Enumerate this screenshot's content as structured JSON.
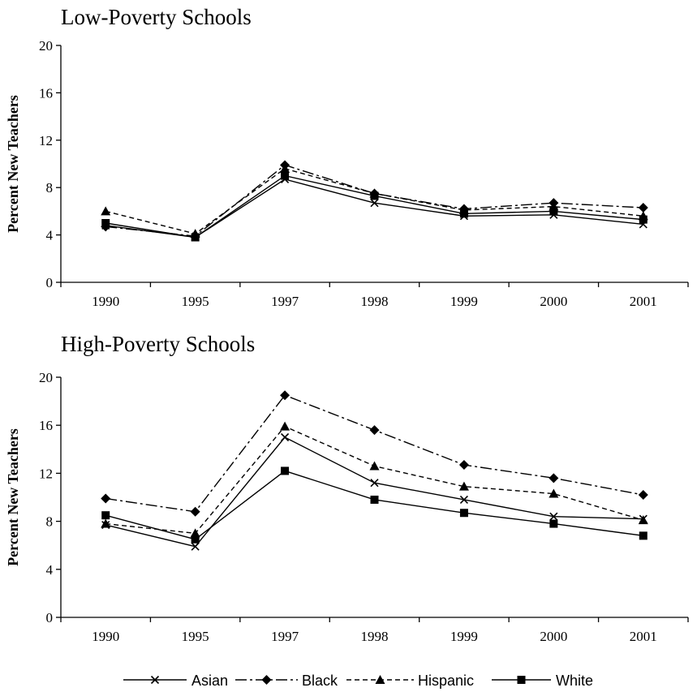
{
  "legend": {
    "placement": "bottom",
    "entries": [
      {
        "name": "Asian",
        "marker": "x",
        "dash": "solid",
        "color": "#000000"
      },
      {
        "name": "Black",
        "marker": "diamond",
        "dash": "dashdot",
        "color": "#000000"
      },
      {
        "name": "Hispanic",
        "marker": "triangle",
        "dash": "dashed",
        "color": "#000000"
      },
      {
        "name": "White",
        "marker": "square",
        "dash": "solid",
        "color": "#000000"
      }
    ]
  },
  "chart_data": [
    {
      "type": "line",
      "title": "Low-Poverty Schools",
      "ylabel": "Percent New Teachers",
      "xlabel": "",
      "categories": [
        "1990",
        "1995",
        "1997",
        "1998",
        "1999",
        "2000",
        "2001"
      ],
      "yticks": [
        "0",
        "4",
        "8",
        "12",
        "16",
        "20"
      ],
      "ylim": [
        0,
        20
      ],
      "grid": false,
      "series": [
        {
          "name": "Asian",
          "values": [
            4.8,
            3.8,
            8.7,
            6.7,
            5.6,
            5.7,
            4.9
          ]
        },
        {
          "name": "Black",
          "values": [
            4.7,
            3.9,
            9.9,
            7.5,
            6.2,
            6.7,
            6.3
          ]
        },
        {
          "name": "Hispanic",
          "values": [
            6.0,
            4.1,
            9.6,
            7.5,
            6.1,
            6.4,
            5.6
          ]
        },
        {
          "name": "White",
          "values": [
            5.0,
            3.8,
            9.0,
            7.3,
            5.8,
            6.0,
            5.3
          ]
        }
      ]
    },
    {
      "type": "line",
      "title": "High-Poverty Schools",
      "ylabel": "Percent New Teachers",
      "xlabel": "",
      "categories": [
        "1990",
        "1995",
        "1997",
        "1998",
        "1999",
        "2000",
        "2001"
      ],
      "yticks": [
        "0",
        "4",
        "8",
        "12",
        "16",
        "20"
      ],
      "ylim": [
        0,
        20
      ],
      "grid": false,
      "series": [
        {
          "name": "Asian",
          "values": [
            7.7,
            5.9,
            15.0,
            11.2,
            9.8,
            8.4,
            8.2
          ]
        },
        {
          "name": "Black",
          "values": [
            9.9,
            8.8,
            18.5,
            15.6,
            12.7,
            11.6,
            10.2
          ]
        },
        {
          "name": "Hispanic",
          "values": [
            7.8,
            7.0,
            15.9,
            12.6,
            10.9,
            10.3,
            8.1
          ]
        },
        {
          "name": "White",
          "values": [
            8.5,
            6.5,
            12.2,
            9.8,
            8.7,
            7.8,
            6.8
          ]
        }
      ]
    }
  ]
}
